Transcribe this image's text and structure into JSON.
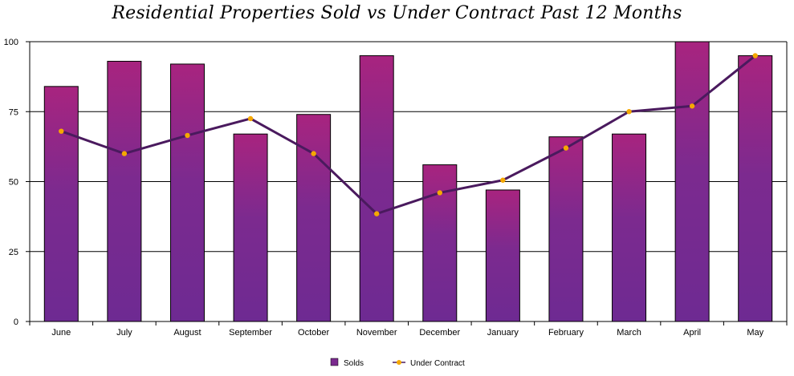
{
  "chart_data": {
    "type": "bar",
    "title": "Residential Properties Sold vs Under Contract Past 12 Months",
    "xlabel": "",
    "ylabel": "",
    "categories": [
      "June",
      "July",
      "August",
      "September",
      "October",
      "November",
      "December",
      "January",
      "February",
      "March",
      "April",
      "May"
    ],
    "series": [
      {
        "name": "Solds",
        "type": "bar",
        "color": "#7a2a8e",
        "values": [
          84,
          93,
          92,
          67,
          74,
          95,
          56,
          47,
          66,
          67,
          100,
          95
        ]
      },
      {
        "name": "Under Contract",
        "type": "line",
        "color": "#4a1a5e",
        "marker_color": "#f5a800",
        "values": [
          68,
          60,
          66.5,
          72.5,
          60,
          38.5,
          46,
          50.5,
          62,
          75,
          77,
          95
        ]
      }
    ],
    "ylim": [
      0,
      100
    ],
    "yticks": [
      0,
      25,
      50,
      75,
      100
    ],
    "grid": true,
    "legend_position": "bottom"
  }
}
